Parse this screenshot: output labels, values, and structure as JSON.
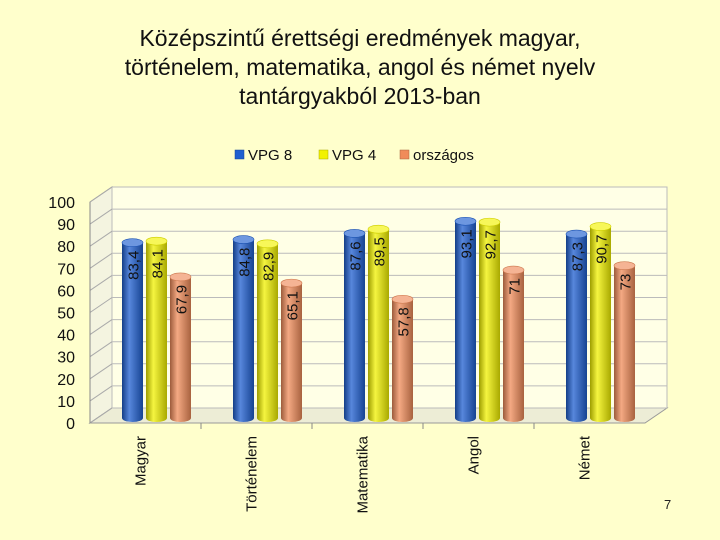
{
  "slide": {
    "title_lines": [
      "Középszintű érettségi eredmények magyar,",
      "történelem, matematika, angol és német nyelv",
      "tantárgyakból 2013-ban"
    ],
    "page_number": "7"
  },
  "chart_data": {
    "type": "bar",
    "title": "Középszintű érettségi eredmények magyar, történelem, matematika, angol és német nyelv tantárgyakból 2013-ban",
    "xlabel": "",
    "ylabel": "",
    "ylim": [
      0,
      100
    ],
    "yticks": [
      0,
      10,
      20,
      30,
      40,
      50,
      60,
      70,
      80,
      90,
      100
    ],
    "categories": [
      "Magyar",
      "Történelem",
      "Matematika",
      "Angol",
      "Német"
    ],
    "series": [
      {
        "name": "VPG 8",
        "color": "#1F5FD0",
        "values": [
          83.4,
          84.8,
          87.6,
          93.1,
          87.3
        ],
        "labels": [
          "83,4",
          "84,8",
          "87,6",
          "93,1",
          "87,3"
        ]
      },
      {
        "name": "VPG 4",
        "color": "#F2F200",
        "values": [
          84.1,
          82.9,
          89.5,
          92.7,
          90.7
        ],
        "labels": [
          "84,1",
          "82,9",
          "89,5",
          "92,7",
          "90,7"
        ]
      },
      {
        "name": "országos",
        "color": "#F08C5A",
        "values": [
          67.9,
          65.1,
          57.8,
          71,
          73
        ],
        "labels": [
          "67,9",
          "65,1",
          "57,8",
          "71",
          "73"
        ]
      }
    ],
    "legend_position": "top",
    "grid": true,
    "three_d": true
  }
}
